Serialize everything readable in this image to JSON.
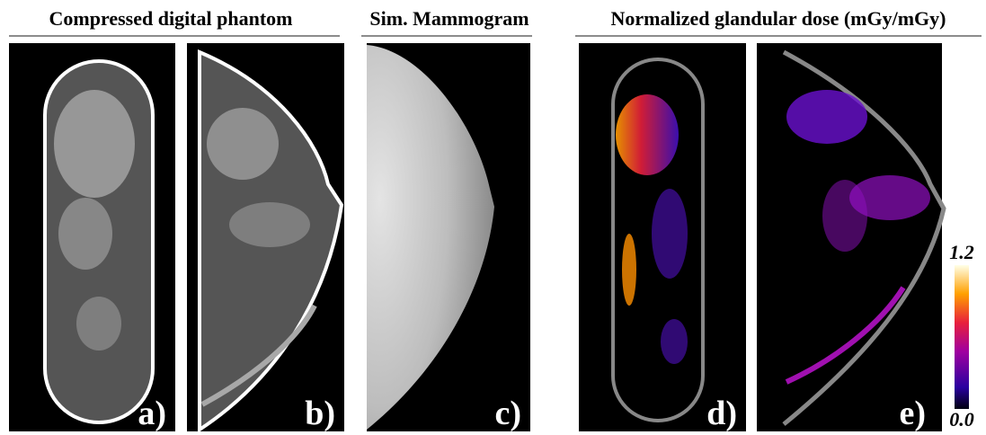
{
  "headers": [
    "Compressed digital phantom",
    "Sim. Mammogram",
    "Normalized glandular dose (mGy/mGy)"
  ],
  "panels": [
    {
      "label": "a)"
    },
    {
      "label": "b)"
    },
    {
      "label": "c)"
    },
    {
      "label": "d)"
    },
    {
      "label": "e)"
    }
  ],
  "colorbar": {
    "max": "1.2",
    "min": "0.0"
  }
}
